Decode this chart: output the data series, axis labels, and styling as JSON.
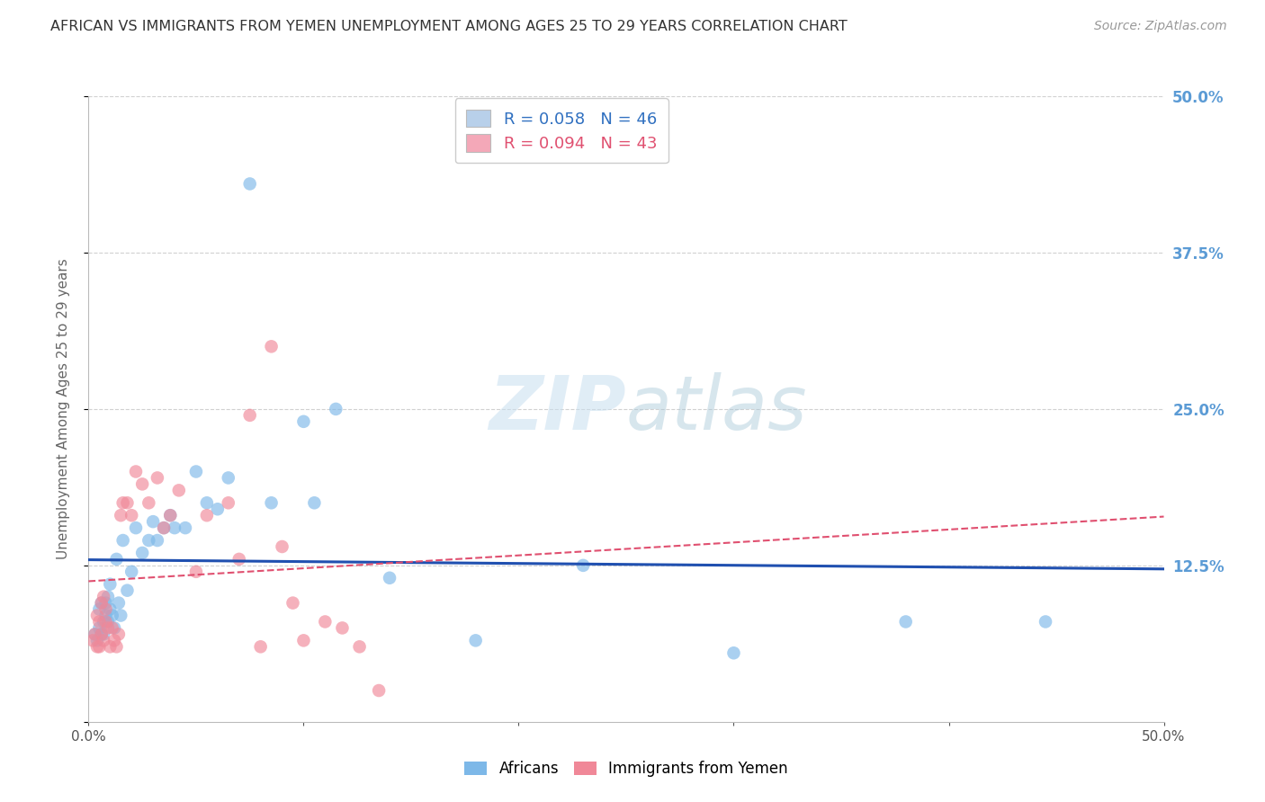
{
  "title": "AFRICAN VS IMMIGRANTS FROM YEMEN UNEMPLOYMENT AMONG AGES 25 TO 29 YEARS CORRELATION CHART",
  "source": "Source: ZipAtlas.com",
  "ylabel": "Unemployment Among Ages 25 to 29 years",
  "xlim": [
    0.0,
    0.5
  ],
  "ylim": [
    0.0,
    0.5
  ],
  "yticks": [
    0.0,
    0.125,
    0.25,
    0.375,
    0.5
  ],
  "ytick_labels": [
    "",
    "12.5%",
    "25.0%",
    "37.5%",
    "50.0%"
  ],
  "legend1_label": "R = 0.058   N = 46",
  "legend2_label": "R = 0.094   N = 43",
  "legend_color1": "#b8d0ea",
  "legend_color2": "#f4a8b8",
  "blue_dot_color": "#7db8e8",
  "pink_dot_color": "#f08898",
  "blue_line_color": "#2050b0",
  "pink_line_color": "#e05070",
  "text_legend1_color": "#3070c0",
  "text_legend2_color": "#e05070",
  "right_tick_color": "#5b9bd5",
  "africans_x": [
    0.003,
    0.004,
    0.005,
    0.005,
    0.006,
    0.006,
    0.007,
    0.007,
    0.008,
    0.008,
    0.009,
    0.009,
    0.01,
    0.01,
    0.011,
    0.012,
    0.013,
    0.014,
    0.015,
    0.016,
    0.018,
    0.02,
    0.022,
    0.025,
    0.028,
    0.03,
    0.032,
    0.035,
    0.038,
    0.04,
    0.045,
    0.05,
    0.055,
    0.06,
    0.065,
    0.075,
    0.085,
    0.1,
    0.105,
    0.115,
    0.14,
    0.18,
    0.3,
    0.38,
    0.445,
    0.23
  ],
  "africans_y": [
    0.07,
    0.065,
    0.075,
    0.09,
    0.07,
    0.095,
    0.08,
    0.07,
    0.085,
    0.095,
    0.08,
    0.1,
    0.09,
    0.11,
    0.085,
    0.075,
    0.13,
    0.095,
    0.085,
    0.145,
    0.105,
    0.12,
    0.155,
    0.135,
    0.145,
    0.16,
    0.145,
    0.155,
    0.165,
    0.155,
    0.155,
    0.2,
    0.175,
    0.17,
    0.195,
    0.43,
    0.175,
    0.24,
    0.175,
    0.25,
    0.115,
    0.065,
    0.055,
    0.08,
    0.08,
    0.125
  ],
  "yemen_x": [
    0.002,
    0.003,
    0.004,
    0.004,
    0.005,
    0.005,
    0.006,
    0.006,
    0.007,
    0.007,
    0.008,
    0.008,
    0.009,
    0.01,
    0.011,
    0.012,
    0.013,
    0.014,
    0.015,
    0.016,
    0.018,
    0.02,
    0.022,
    0.025,
    0.028,
    0.032,
    0.035,
    0.038,
    0.042,
    0.05,
    0.055,
    0.065,
    0.07,
    0.075,
    0.08,
    0.085,
    0.09,
    0.095,
    0.1,
    0.11,
    0.118,
    0.126,
    0.135
  ],
  "yemen_y": [
    0.065,
    0.07,
    0.06,
    0.085,
    0.06,
    0.08,
    0.07,
    0.095,
    0.065,
    0.1,
    0.08,
    0.09,
    0.075,
    0.06,
    0.075,
    0.065,
    0.06,
    0.07,
    0.165,
    0.175,
    0.175,
    0.165,
    0.2,
    0.19,
    0.175,
    0.195,
    0.155,
    0.165,
    0.185,
    0.12,
    0.165,
    0.175,
    0.13,
    0.245,
    0.06,
    0.3,
    0.14,
    0.095,
    0.065,
    0.08,
    0.075,
    0.06,
    0.025
  ]
}
